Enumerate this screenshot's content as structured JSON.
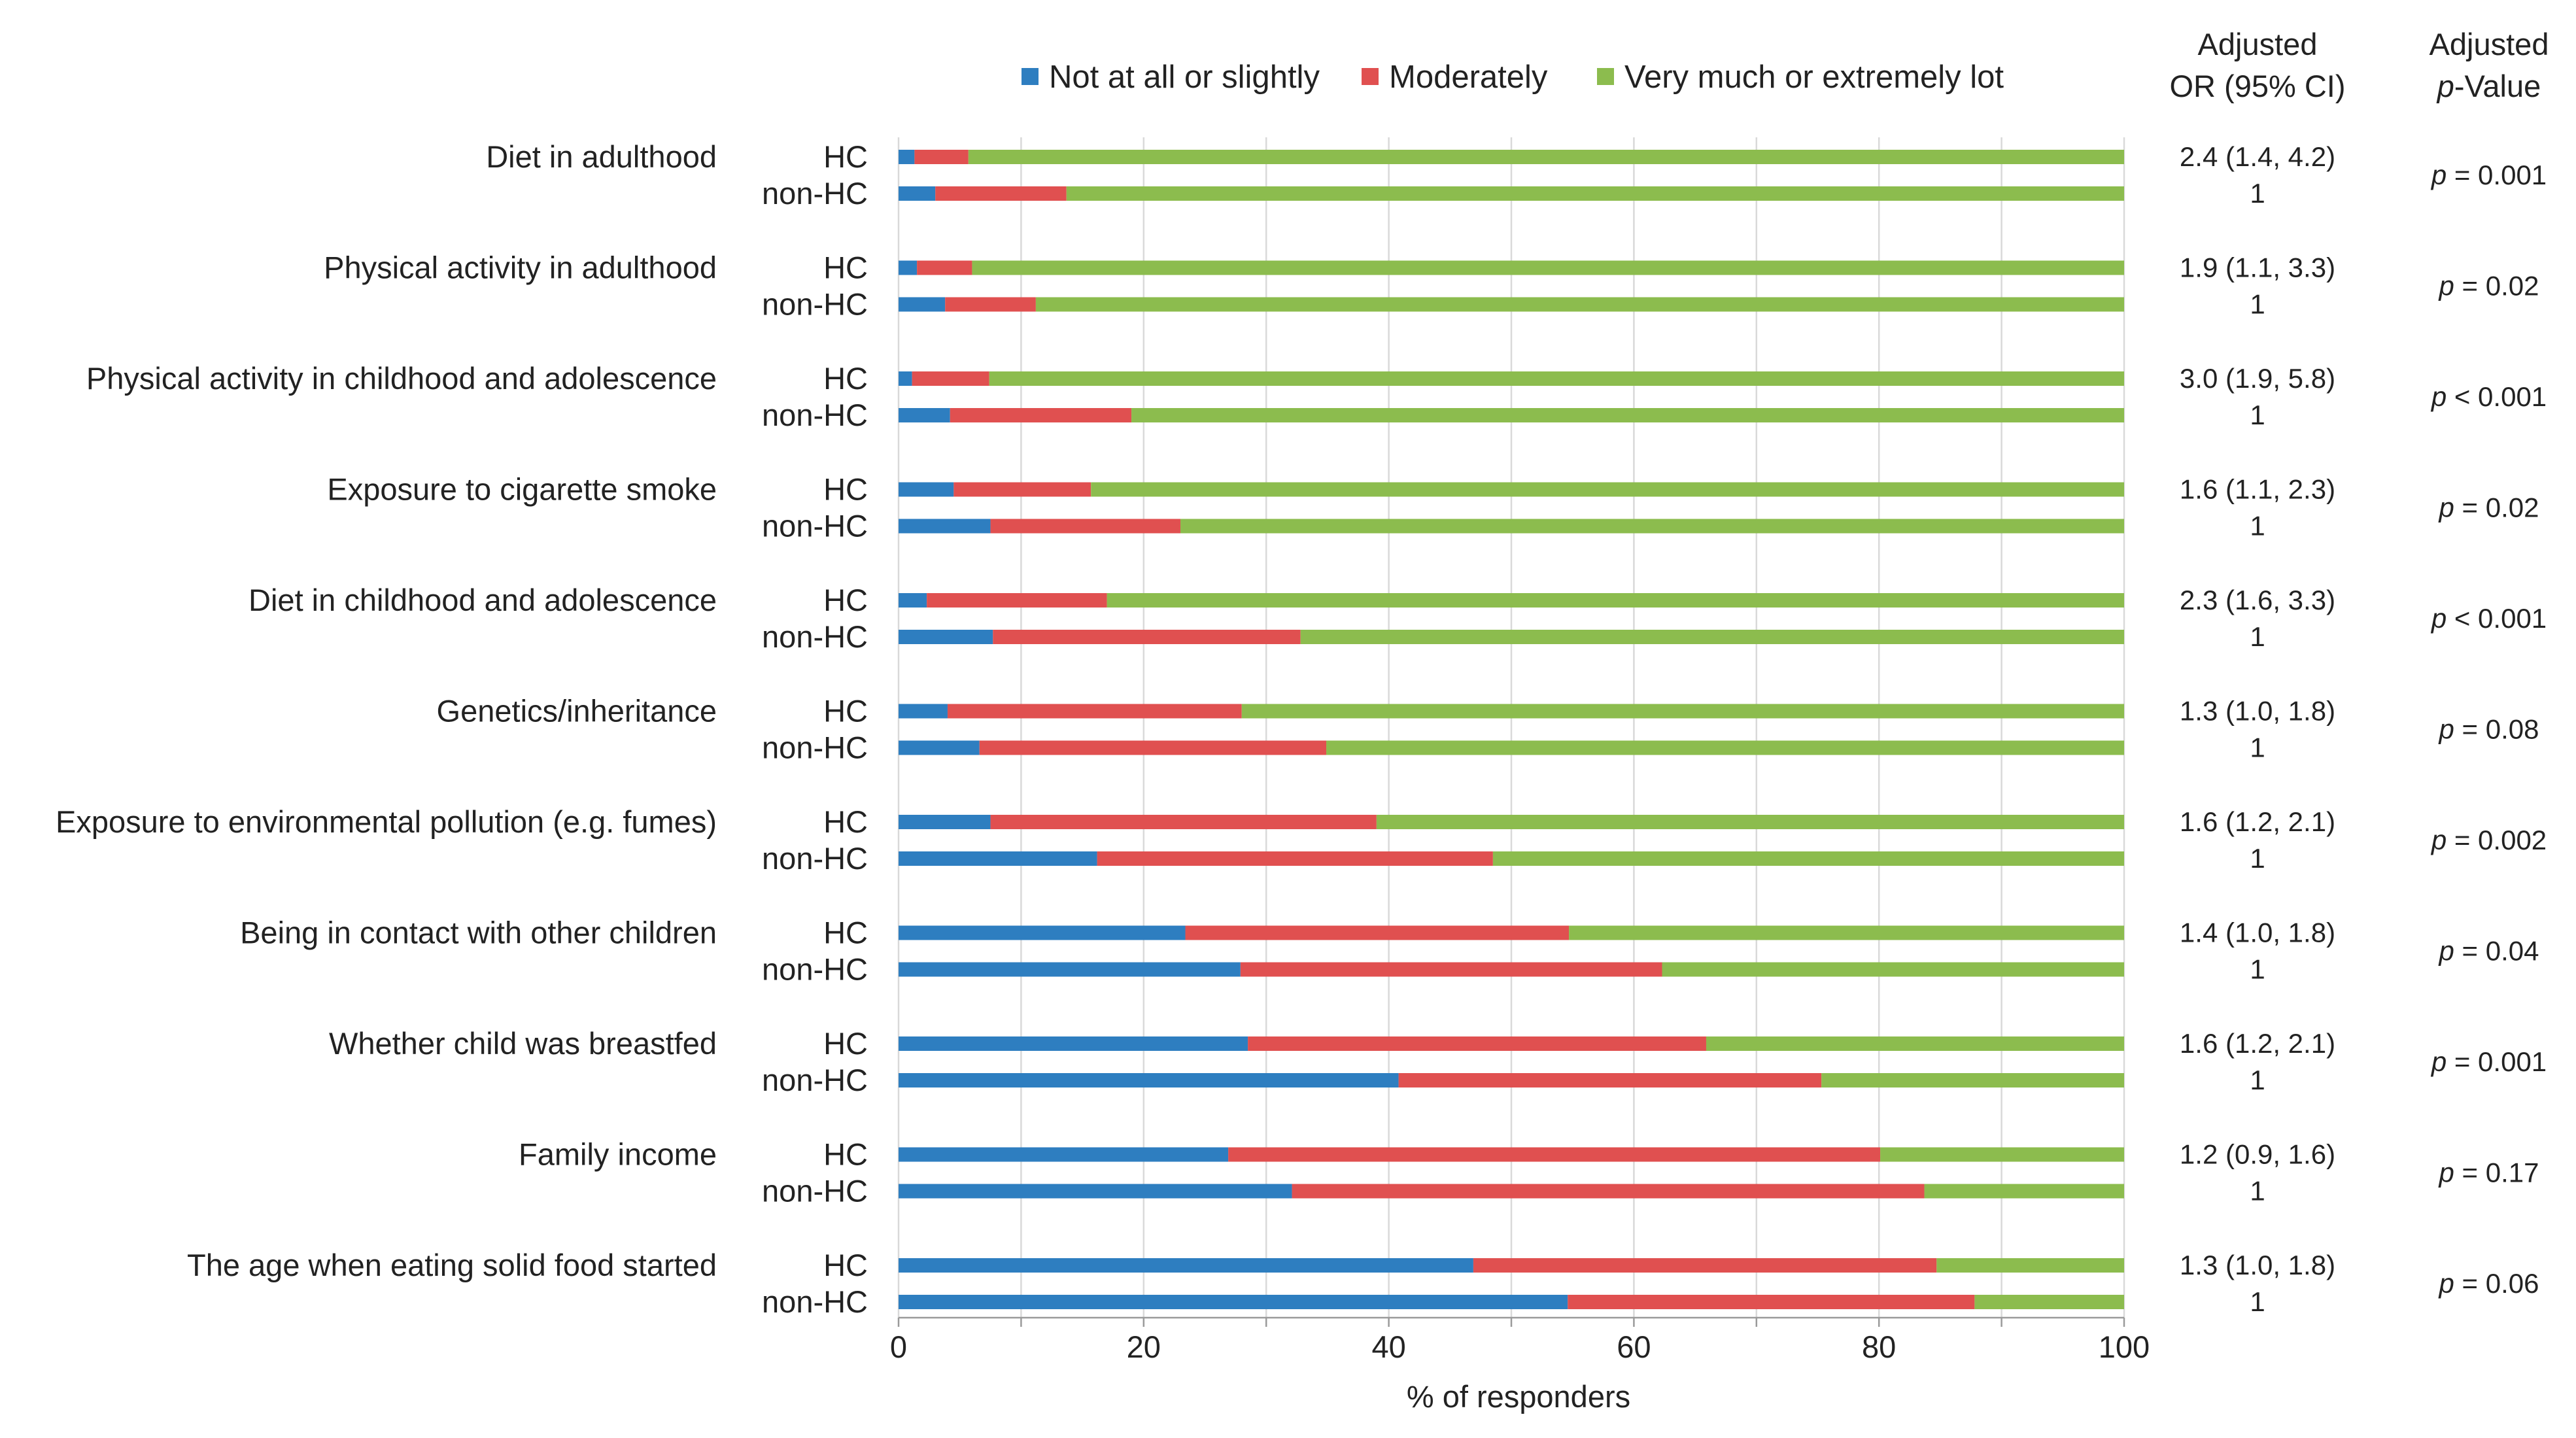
{
  "chart_data": {
    "type": "bar",
    "stacked": true,
    "orientation": "horizontal",
    "xlabel": "% of responders",
    "xlim": [
      0,
      100
    ],
    "xticks": [
      "0",
      "20",
      "40",
      "60",
      "80",
      "100"
    ],
    "grid": "vertical",
    "legend_position": "top",
    "groups": [
      "HC",
      "non-HC"
    ],
    "series": [
      {
        "name": "Not at all or slightly",
        "color": "#2e7ec0"
      },
      {
        "name": "Moderately",
        "color": "#e05050"
      },
      {
        "name": "Very much or extremely lot",
        "color": "#8cbc4e"
      }
    ],
    "or_header": [
      "Adjusted",
      "OR (95% CI)"
    ],
    "p_header": [
      "Adjusted",
      "p",
      "-Value"
    ],
    "rows": [
      {
        "category": "Diet in adulthood",
        "hc": [
          1.3,
          4.4,
          94.3
        ],
        "nonhc": [
          3.0,
          10.7,
          86.3
        ],
        "or_hc": "2.4 (1.4, 4.2)",
        "or_nonhc": "1",
        "p_prefix": "p",
        "p_rest": " = 0.001"
      },
      {
        "category": "Physical activity in adulthood",
        "hc": [
          1.5,
          4.5,
          94.0
        ],
        "nonhc": [
          3.8,
          7.4,
          88.8
        ],
        "or_hc": "1.9 (1.1, 3.3)",
        "or_nonhc": "1",
        "p_prefix": "p",
        "p_rest": " = 0.02"
      },
      {
        "category": "Physical activity in childhood and adolescence",
        "hc": [
          1.1,
          6.3,
          92.6
        ],
        "nonhc": [
          4.2,
          14.8,
          81.0
        ],
        "or_hc": "3.0 (1.9, 5.8)",
        "or_nonhc": "1",
        "p_prefix": "p",
        "p_rest": " < 0.001"
      },
      {
        "category": "Exposure to cigarette smoke",
        "hc": [
          4.5,
          11.2,
          84.3
        ],
        "nonhc": [
          7.5,
          15.5,
          77.0
        ],
        "or_hc": "1.6 (1.1, 2.3)",
        "or_nonhc": "1",
        "p_prefix": "p",
        "p_rest": " = 0.02"
      },
      {
        "category": "Diet in childhood and adolescence",
        "hc": [
          2.3,
          14.7,
          83.0
        ],
        "nonhc": [
          7.7,
          25.1,
          67.2
        ],
        "or_hc": "2.3 (1.6, 3.3)",
        "or_nonhc": "1",
        "p_prefix": "p",
        "p_rest": " < 0.001"
      },
      {
        "category": "Genetics/inheritance",
        "hc": [
          4.0,
          24.0,
          72.0
        ],
        "nonhc": [
          6.6,
          28.3,
          65.1
        ],
        "or_hc": "1.3 (1.0, 1.8)",
        "or_nonhc": "1",
        "p_prefix": "p",
        "p_rest": " = 0.08"
      },
      {
        "category": "Exposure to environmental pollution (e.g. fumes)",
        "hc": [
          7.5,
          31.5,
          61.0
        ],
        "nonhc": [
          16.2,
          32.3,
          51.5
        ],
        "or_hc": "1.6 (1.2, 2.1)",
        "or_nonhc": "1",
        "p_prefix": "p",
        "p_rest": " = 0.002"
      },
      {
        "category": "Being in contact with other children",
        "hc": [
          23.4,
          31.3,
          45.3
        ],
        "nonhc": [
          27.9,
          34.4,
          37.7
        ],
        "or_hc": "1.4 (1.0, 1.8)",
        "or_nonhc": "1",
        "p_prefix": "p",
        "p_rest": " = 0.04"
      },
      {
        "category": "Whether child was breastfed",
        "hc": [
          28.5,
          37.4,
          34.1
        ],
        "nonhc": [
          40.8,
          34.5,
          24.7
        ],
        "or_hc": "1.6 (1.2, 2.1)",
        "or_nonhc": "1",
        "p_prefix": "p",
        "p_rest": " = 0.001"
      },
      {
        "category": "Family income",
        "hc": [
          26.9,
          53.2,
          19.9
        ],
        "nonhc": [
          32.1,
          51.6,
          16.3
        ],
        "or_hc": "1.2 (0.9, 1.6)",
        "or_nonhc": "1",
        "p_prefix": "p",
        "p_rest": " = 0.17"
      },
      {
        "category": "The age when eating solid food started",
        "hc": [
          46.9,
          37.8,
          15.3
        ],
        "nonhc": [
          54.6,
          33.2,
          12.2
        ],
        "or_hc": "1.3 (1.0, 1.8)",
        "or_nonhc": "1",
        "p_prefix": "p",
        "p_rest": " = 0.06"
      }
    ]
  }
}
